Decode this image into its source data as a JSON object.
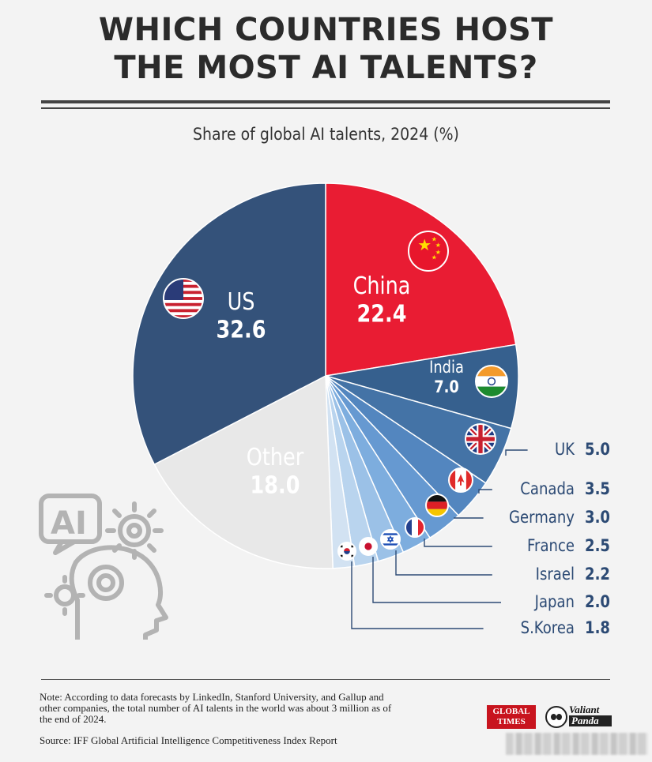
{
  "header": {
    "title_line1": "WHICH COUNTRIES HOST",
    "title_line2": "THE MOST AI TALENTS?",
    "subtitle": "Share of global AI talents, 2024 (%)"
  },
  "chart_data": {
    "type": "pie",
    "title": "Share of global AI talents, 2024 (%)",
    "slices": [
      {
        "label": "China",
        "value": 22.4,
        "display": "22.4",
        "color": "#e91c33",
        "flag": "china-flag"
      },
      {
        "label": "India",
        "value": 7.0,
        "display": "7.0",
        "color": "#36608e",
        "flag": "india-flag"
      },
      {
        "label": "UK",
        "value": 5.0,
        "display": "5.0",
        "color": "#4473a6",
        "flag": "uk-flag"
      },
      {
        "label": "Canada",
        "value": 3.5,
        "display": "3.5",
        "color": "#5386bf",
        "flag": "canada-flag"
      },
      {
        "label": "Germany",
        "value": 3.0,
        "display": "3.0",
        "color": "#6699d1",
        "flag": "germany-flag"
      },
      {
        "label": "France",
        "value": 2.5,
        "display": "2.5",
        "color": "#7dadde",
        "flag": "france-flag"
      },
      {
        "label": "Israel",
        "value": 2.2,
        "display": "2.2",
        "color": "#9bc1e7",
        "flag": "israel-flag"
      },
      {
        "label": "Japan",
        "value": 2.0,
        "display": "2.0",
        "color": "#b9d4ee",
        "flag": "japan-flag"
      },
      {
        "label": "S.Korea",
        "value": 1.8,
        "display": "1.8",
        "color": "#d2e2f2",
        "flag": "korea-flag"
      },
      {
        "label": "Other",
        "value": 18.0,
        "display": "18.0",
        "color": "#e8e8e8",
        "flag": ""
      },
      {
        "label": "US",
        "value": 32.6,
        "display": "32.6",
        "color": "#34527a",
        "flag": "us-flag"
      }
    ],
    "legend_text_color": "#2c4a74"
  },
  "footer": {
    "note": "Note: According to data forecasts by LinkedIn, Stanford University, and Gallup and other companies, the total number of AI talents in the world was about 3 million as of the end of 2024.",
    "source": "Source: IFF Global Artificial Intelligence Competitiveness Index Report",
    "logo_global_times_line1": "GLOBAL",
    "logo_global_times_line2": "TIMES",
    "logo_valiant": "Valiant",
    "logo_panda": "Panda"
  }
}
